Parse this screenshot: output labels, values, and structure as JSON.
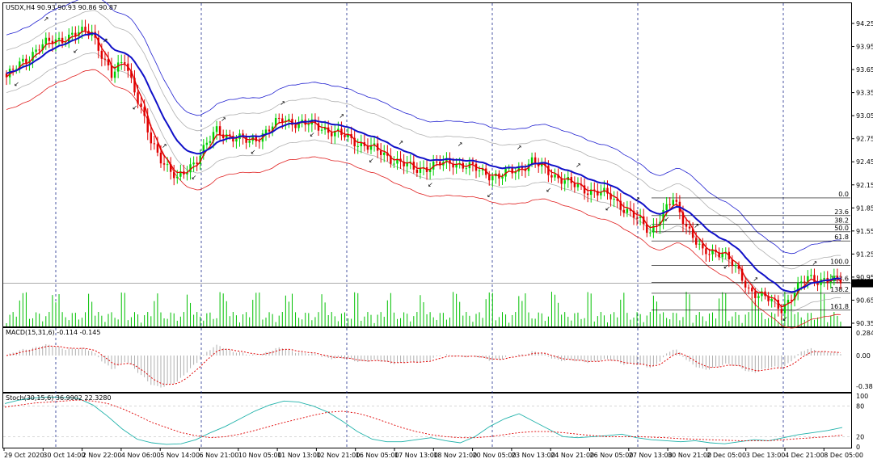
{
  "chart_data": [
    {
      "type": "candlestick",
      "title": "USDX,H4  90.93 90.93 90.86 90.87",
      "symbol": "USDX,H4",
      "ohlc_header": [
        "90.93",
        "90.93",
        "90.86",
        "90.87"
      ],
      "ylim": [
        90.35,
        94.4
      ],
      "y_ticks": [
        "94.25",
        "93.95",
        "93.65",
        "93.35",
        "93.05",
        "92.75",
        "92.45",
        "92.15",
        "91.85",
        "91.55",
        "91.25",
        "90.95",
        "90.65",
        "90.35"
      ],
      "last_price": "90.87",
      "grid": false,
      "candle_up_color": "#00d000",
      "candle_down_color": "#e00000",
      "key_points": [
        {
          "x": 0,
          "y": 93.55
        },
        {
          "x": 10,
          "y": 93.95
        },
        {
          "x": 20,
          "y": 94.1
        },
        {
          "x": 26,
          "y": 94.15
        },
        {
          "x": 32,
          "y": 93.55
        },
        {
          "x": 36,
          "y": 93.8
        },
        {
          "x": 44,
          "y": 92.7
        },
        {
          "x": 52,
          "y": 92.2
        },
        {
          "x": 58,
          "y": 92.5
        },
        {
          "x": 64,
          "y": 92.85
        },
        {
          "x": 74,
          "y": 92.7
        },
        {
          "x": 84,
          "y": 93.0
        },
        {
          "x": 96,
          "y": 92.9
        },
        {
          "x": 110,
          "y": 92.65
        },
        {
          "x": 124,
          "y": 92.35
        },
        {
          "x": 136,
          "y": 92.45
        },
        {
          "x": 150,
          "y": 92.25
        },
        {
          "x": 160,
          "y": 92.45
        },
        {
          "x": 172,
          "y": 92.15
        },
        {
          "x": 184,
          "y": 92.0
        },
        {
          "x": 196,
          "y": 91.55
        },
        {
          "x": 203,
          "y": 91.95
        },
        {
          "x": 212,
          "y": 91.25
        },
        {
          "x": 218,
          "y": 91.3
        },
        {
          "x": 226,
          "y": 90.8
        },
        {
          "x": 236,
          "y": 90.55
        },
        {
          "x": 244,
          "y": 90.95
        },
        {
          "x": 254,
          "y": 90.87
        }
      ],
      "ma_fast_offset": 0.0,
      "fibonacci": {
        "levels": [
          {
            "label": "0.0",
            "price": 91.98
          },
          {
            "label": "23.6",
            "price": 91.75
          },
          {
            "label": "38.2",
            "price": 91.64
          },
          {
            "label": "50.0",
            "price": 91.54
          },
          {
            "label": "61.8",
            "price": 91.42
          },
          {
            "label": "100.0",
            "price": 91.1
          },
          {
            "label": "123.6",
            "price": 90.88
          },
          {
            "label": "138.2",
            "price": 90.74
          },
          {
            "label": "161.8",
            "price": 90.52
          }
        ]
      },
      "x_labels": [
        "29 Oct 2020",
        "30 Oct 14:00",
        "2 Nov 22:00",
        "4 Nov 06:00",
        "5 Nov 14:00",
        "6 Nov 21:00",
        "10 Nov 05:00",
        "11 Nov 13:00",
        "12 Nov 21:00",
        "16 Nov 05:00",
        "17 Nov 13:00",
        "18 Nov 21:00",
        "20 Nov 05:00",
        "23 Nov 13:00",
        "24 Nov 21:00",
        "26 Nov 05:00",
        "27 Nov 13:00",
        "30 Nov 21:00",
        "2 Dec 05:00",
        "3 Dec 13:00",
        "4 Dec 21:00",
        "8 Dec 05:00"
      ]
    },
    {
      "type": "histogram",
      "title": "MACD(15,31,6) -0.114 -0.145",
      "ylim": [
        -0.45,
        0.33
      ],
      "y_ticks": [
        "0.284",
        "0.00",
        "-0.386"
      ]
    },
    {
      "type": "line",
      "title": "Stoch(30,15,6) 36.9902 22.3280",
      "ylim": [
        0,
        100
      ],
      "y_ticks": [
        "100",
        "80",
        "20",
        "0"
      ],
      "levels": [
        80,
        20
      ],
      "series": [
        {
          "color": "#20b2aa",
          "values": [
            85,
            92,
            96,
            98,
            97,
            95,
            82,
            60,
            35,
            15,
            8,
            5,
            6,
            14,
            28,
            40,
            55,
            70,
            82,
            90,
            88,
            80,
            68,
            50,
            30,
            15,
            10,
            10,
            14,
            18,
            12,
            8,
            20,
            40,
            55,
            65,
            50,
            35,
            20,
            18,
            20,
            22,
            25,
            18,
            14,
            12,
            10,
            12,
            8,
            6,
            10,
            14,
            12,
            18,
            24,
            28,
            32,
            38
          ]
        },
        {
          "color": "#e00000",
          "values": [
            78,
            82,
            86,
            88,
            90,
            92,
            90,
            85,
            75,
            62,
            48,
            38,
            28,
            22,
            18,
            20,
            25,
            32,
            40,
            48,
            55,
            62,
            68,
            70,
            66,
            58,
            48,
            38,
            30,
            24,
            20,
            18,
            18,
            20,
            24,
            28,
            30,
            30,
            28,
            25,
            22,
            20,
            20,
            20,
            19,
            18,
            16,
            15,
            14,
            13,
            12,
            12,
            12,
            14,
            16,
            18,
            20,
            23
          ]
        }
      ]
    }
  ]
}
